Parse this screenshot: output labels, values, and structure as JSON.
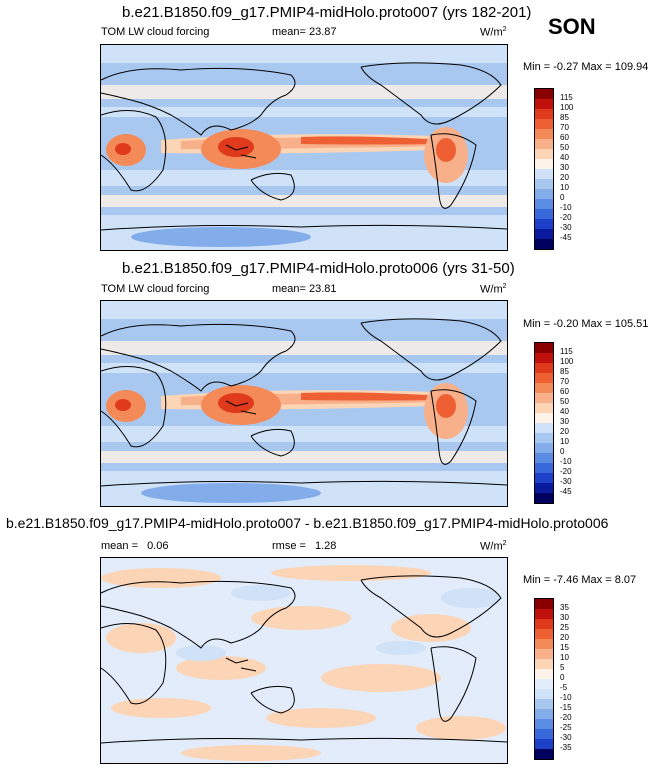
{
  "season": "SON",
  "panels": [
    {
      "title": "b.e21.B1850.f09_g17.PMIP4-midHolo.proto007 (yrs 182-201)",
      "left_label": "TOM LW cloud forcing",
      "mean_label": "mean=",
      "mean_value": "23.87",
      "units": "W/m",
      "units_exp": "2",
      "minmax": "Min =  -0.27 Max = 109.94",
      "colorbar_labels": [
        "115",
        "100",
        "85",
        "70",
        "60",
        "50",
        "40",
        "30",
        "20",
        "10",
        "0",
        "-10",
        "-20",
        "-30",
        "-45"
      ],
      "colorbar_colors": [
        "#8a0000",
        "#c0100c",
        "#e03a1c",
        "#ee6034",
        "#f48a58",
        "#f8b08a",
        "#fcd4b6",
        "#fff2e6",
        "#cfe2f8",
        "#a9c8f0",
        "#82acea",
        "#5a8ce4",
        "#3868da",
        "#1c40c8",
        "#0a1a9c",
        "#000060"
      ],
      "chart_data": {
        "type": "heatmap",
        "title": "b.e21.B1850.f09_g17.PMIP4-midHolo.proto007 (yrs 182-201)",
        "variable": "TOM LW cloud forcing",
        "units": "W/m2",
        "mean": 23.87,
        "min": -0.27,
        "max": 109.94,
        "levels": [
          -45,
          -30,
          -20,
          -10,
          0,
          10,
          20,
          30,
          40,
          50,
          60,
          70,
          85,
          100,
          115
        ]
      }
    },
    {
      "title": "b.e21.B1850.f09_g17.PMIP4-midHolo.proto006 (yrs 31-50)",
      "left_label": "TOM LW cloud forcing",
      "mean_label": "mean=",
      "mean_value": "23.81",
      "units": "W/m",
      "units_exp": "2",
      "minmax": "Min =  -0.20 Max = 105.51",
      "colorbar_labels": [
        "115",
        "100",
        "85",
        "70",
        "60",
        "50",
        "40",
        "30",
        "20",
        "10",
        "0",
        "-10",
        "-20",
        "-30",
        "-45"
      ],
      "colorbar_colors": [
        "#8a0000",
        "#c0100c",
        "#e03a1c",
        "#ee6034",
        "#f48a58",
        "#f8b08a",
        "#fcd4b6",
        "#fff2e6",
        "#cfe2f8",
        "#a9c8f0",
        "#82acea",
        "#5a8ce4",
        "#3868da",
        "#1c40c8",
        "#0a1a9c",
        "#000060"
      ],
      "chart_data": {
        "type": "heatmap",
        "title": "b.e21.B1850.f09_g17.PMIP4-midHolo.proto006 (yrs 31-50)",
        "variable": "TOM LW cloud forcing",
        "units": "W/m2",
        "mean": 23.81,
        "min": -0.2,
        "max": 105.51,
        "levels": [
          -45,
          -30,
          -20,
          -10,
          0,
          10,
          20,
          30,
          40,
          50,
          60,
          70,
          85,
          100,
          115
        ]
      }
    },
    {
      "title": "b.e21.B1850.f09_g17.PMIP4-midHolo.proto007 - b.e21.B1850.f09_g17.PMIP4-midHolo.proto006",
      "mean_label": "mean =",
      "mean_value": "0.06",
      "rmse_label": "rmse =",
      "rmse_value": "1.28",
      "units": "W/m",
      "units_exp": "2",
      "minmax": "Min =  -7.46 Max =   8.07",
      "colorbar_labels": [
        "35",
        "30",
        "25",
        "20",
        "15",
        "10",
        "5",
        "0",
        "-5",
        "-10",
        "-15",
        "-20",
        "-25",
        "-30",
        "-35"
      ],
      "colorbar_colors": [
        "#8a0000",
        "#c0100c",
        "#e03a1c",
        "#ee6034",
        "#f48a58",
        "#f8b08a",
        "#fcd4b6",
        "#fff2e6",
        "#e2ecfa",
        "#cfe2f8",
        "#a9c8f0",
        "#82acea",
        "#5a8ce4",
        "#3868da",
        "#1c40c8",
        "#000060"
      ],
      "chart_data": {
        "type": "heatmap",
        "title": "b.e21.B1850.f09_g17.PMIP4-midHolo.proto007 - b.e21.B1850.f09_g17.PMIP4-midHolo.proto006",
        "units": "W/m2",
        "mean": 0.06,
        "rmse": 1.28,
        "min": -7.46,
        "max": 8.07,
        "levels": [
          -35,
          -30,
          -25,
          -20,
          -15,
          -10,
          -5,
          0,
          5,
          10,
          15,
          20,
          25,
          30,
          35
        ]
      }
    }
  ]
}
